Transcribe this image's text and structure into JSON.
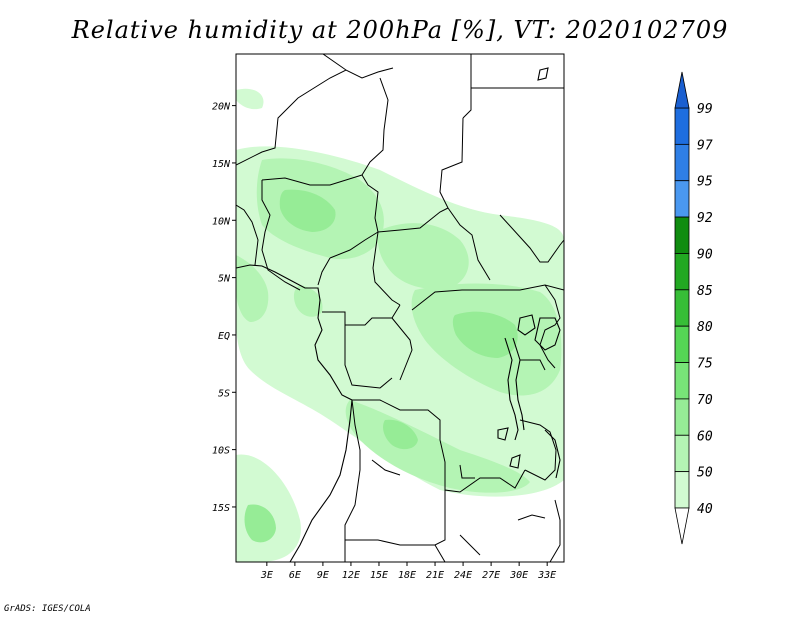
{
  "title": "Relative humidity at 200hPa [%], VT: 2020102709",
  "footer": "GrADS: IGES/COLA",
  "map": {
    "region": "Central Africa",
    "lon_labels": [
      "3E",
      "6E",
      "9E",
      "12E",
      "15E",
      "18E",
      "21E",
      "24E",
      "27E",
      "30E",
      "33E"
    ],
    "lat_labels": [
      "20N",
      "15N",
      "10N",
      "5N",
      "EQ",
      "5S",
      "10S",
      "15S"
    ],
    "lon_range": [
      0,
      35
    ],
    "lat_range": [
      -20,
      25
    ]
  },
  "colorbar": {
    "labels": [
      "99",
      "97",
      "95",
      "92",
      "90",
      "85",
      "80",
      "75",
      "70",
      "60",
      "50",
      "40"
    ],
    "colors": [
      "#1e6ee0",
      "#2f7fe6",
      "#4a98f0",
      "#108c10",
      "#22a822",
      "#37be37",
      "#55d655",
      "#78e478",
      "#96ec96",
      "#b4f4b4",
      "#d2fad2",
      "#f0fff0"
    ]
  },
  "chart_data": {
    "type": "heatmap",
    "title": "Relative humidity at 200hPa [%], VT: 2020102709",
    "variable": "Relative humidity at 200hPa",
    "units": "%",
    "valid_time": "2020102709",
    "contour_levels": [
      40,
      50,
      60,
      70,
      75,
      80,
      85,
      90,
      92,
      95,
      97,
      99
    ],
    "x_ticks": [
      "3E",
      "6E",
      "9E",
      "12E",
      "15E",
      "18E",
      "21E",
      "24E",
      "27E",
      "30E",
      "33E"
    ],
    "y_ticks": [
      "20N",
      "15N",
      "10N",
      "5N",
      "EQ",
      "5S",
      "10S",
      "15S"
    ]
  }
}
